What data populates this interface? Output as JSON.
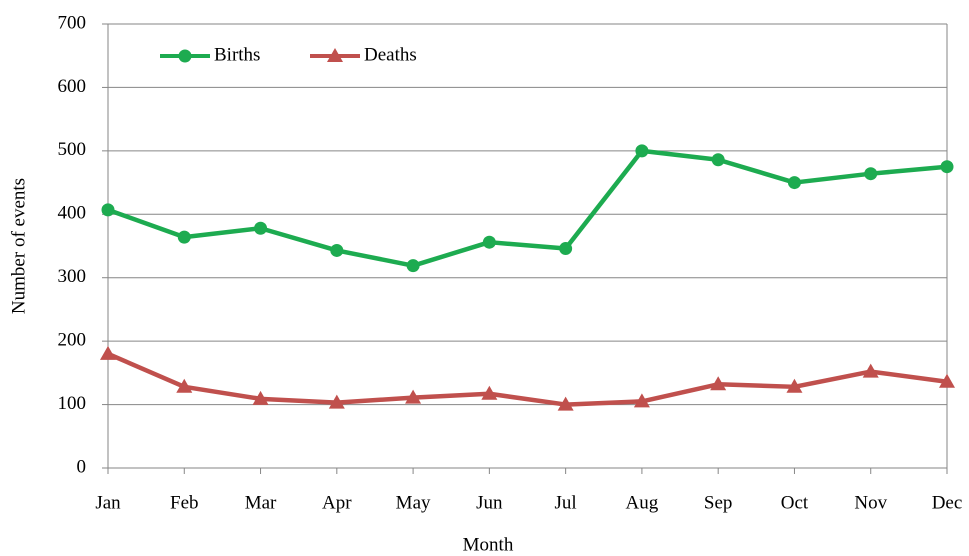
{
  "chart_data": {
    "type": "line",
    "x_label": "Month",
    "y_label": "Number of events",
    "categories": [
      "Jan",
      "Feb",
      "Mar",
      "Apr",
      "May",
      "Jun",
      "Jul",
      "Aug",
      "Sep",
      "Oct",
      "Nov",
      "Dec"
    ],
    "series": [
      {
        "name": "Births",
        "color": "#1dab50",
        "marker": "circle",
        "values": [
          407,
          364,
          378,
          343,
          319,
          356,
          346,
          500,
          486,
          450,
          464,
          475
        ]
      },
      {
        "name": "Deaths",
        "color": "#c0504d",
        "marker": "triangle",
        "values": [
          180,
          128,
          109,
          103,
          111,
          117,
          100,
          105,
          132,
          128,
          152,
          136
        ]
      }
    ],
    "ylim": [
      0,
      700
    ],
    "yticks": [
      0,
      100,
      200,
      300,
      400,
      500,
      600,
      700
    ],
    "grid": true,
    "legend": "upper left"
  }
}
